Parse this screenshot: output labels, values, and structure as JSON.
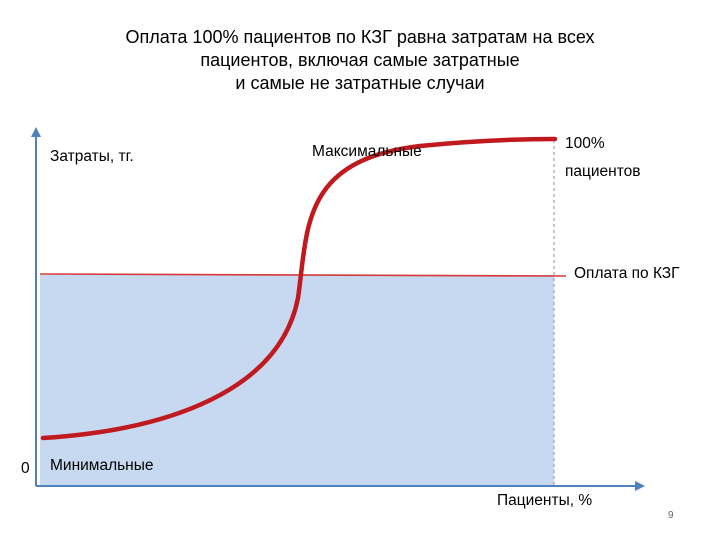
{
  "slide": {
    "title_lines": [
      "Оплата 100% пациентов по КЗГ равна затратам на всех",
      "пациентов, включая самые затратные",
      "и самые не затратные случаи"
    ],
    "page_number": "9"
  },
  "diagram": {
    "y_axis_label": "Затраты, тг.",
    "x_axis_label": "Пациенты, %",
    "origin_label": "0",
    "max_label": "Максимальные",
    "min_label": "Минимальные",
    "hundred_percent_label": [
      "100%",
      "пациентов"
    ],
    "payment_label": "Оплата по КЗГ"
  },
  "colors": {
    "curve": "#c0191e",
    "payment_line": "#d43a3a",
    "fill_area": "#c6d9f1",
    "axis": "#4f81bd",
    "dashed": "#9aa4b0"
  }
}
